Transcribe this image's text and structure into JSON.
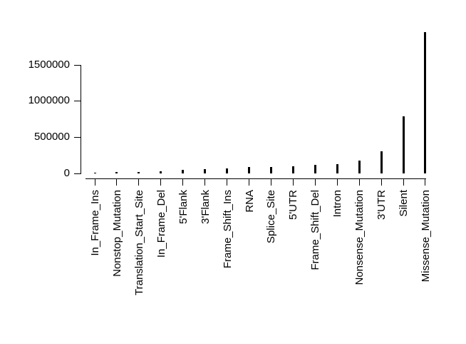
{
  "chart_data": {
    "type": "bar",
    "title": "",
    "xlabel": "",
    "ylabel": "",
    "orientation": "vertical",
    "sort_order": "ascending",
    "grid": false,
    "legend": "none",
    "bar_color": "#000000",
    "axis_color": "#000000",
    "background_color": "#ffffff",
    "label_rotation_degrees": 90,
    "categories": [
      "In_Frame_Ins",
      "Nonstop_Mutation",
      "Translation_Start_Site",
      "In_Frame_Del",
      "5'Flank",
      "3'Flank",
      "Frame_Shift_Ins",
      "RNA",
      "Splice_Site",
      "5'UTR",
      "Frame_Shift_Del",
      "Intron",
      "Nonsense_Mutation",
      "3'UTR",
      "Silent",
      "Missense_Mutation"
    ],
    "values": [
      10000,
      12000,
      15000,
      22000,
      42000,
      56000,
      70000,
      85000,
      88000,
      100000,
      112000,
      125000,
      175000,
      300000,
      790000,
      1950000
    ],
    "y_tick_values": [
      0,
      500000,
      1000000,
      1500000
    ],
    "y_tick_labels": [
      "0",
      "500000",
      "1000000",
      "1500000"
    ],
    "ylim": [
      0,
      2000000
    ]
  }
}
